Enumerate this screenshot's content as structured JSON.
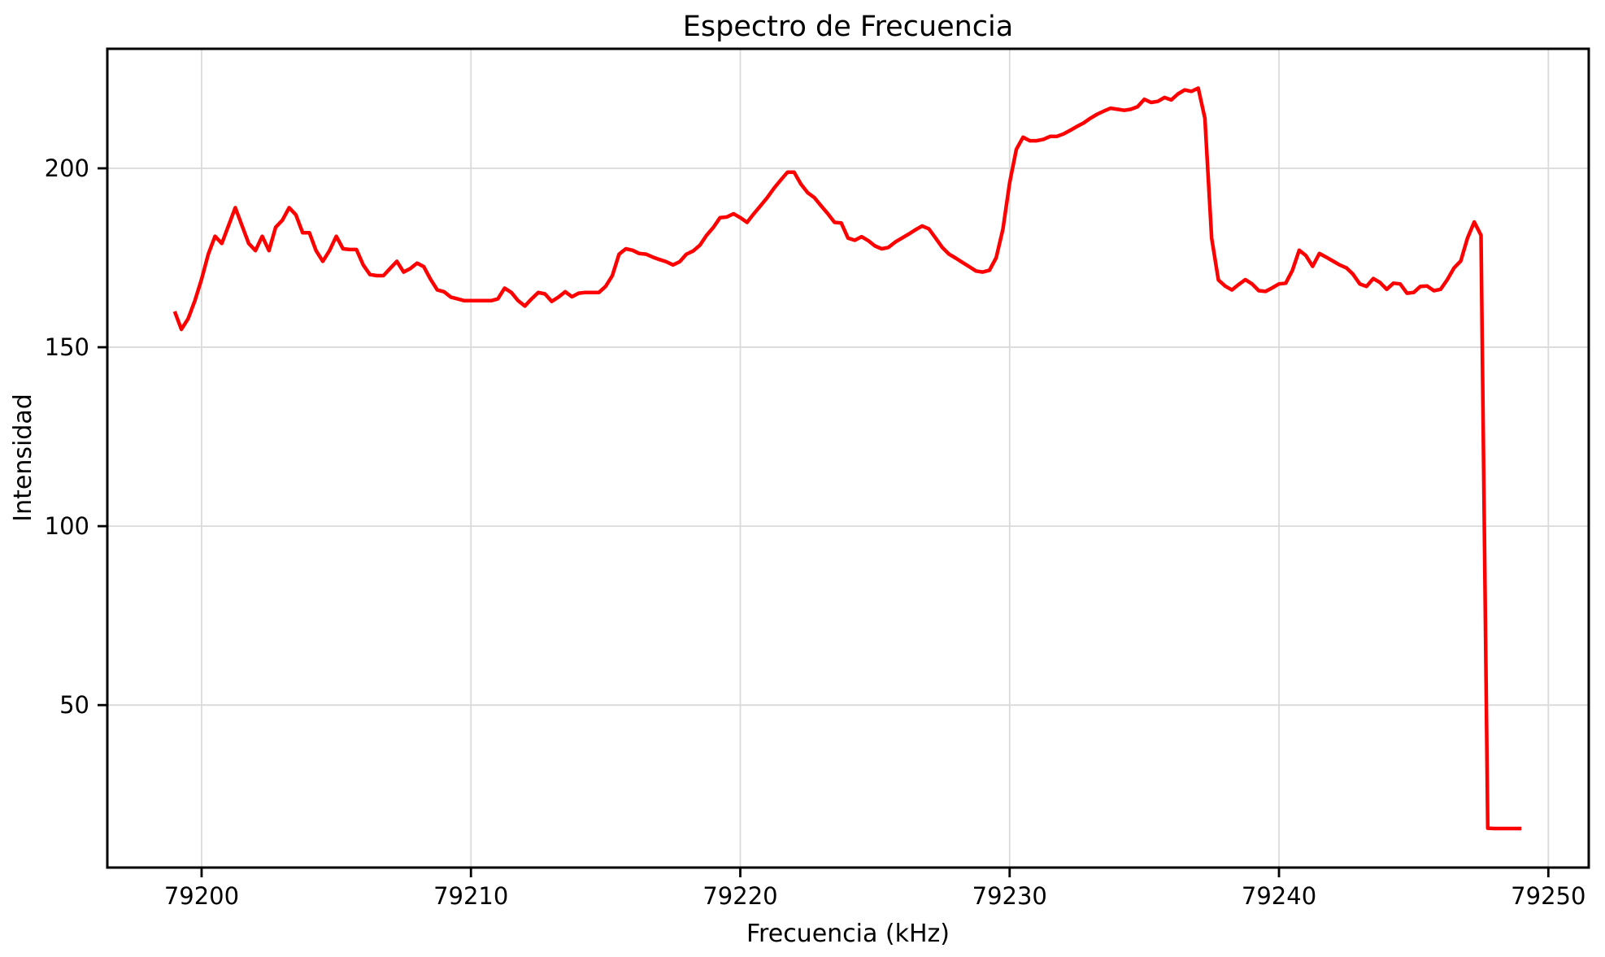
{
  "figure": {
    "title": "Espectro de Frecuencia",
    "xlabel": "Frecuencia (kHz)",
    "ylabel": "Intensidad"
  },
  "chart_data": {
    "type": "line",
    "title": "Espectro de Frecuencia",
    "xlabel": "Frecuencia (kHz)",
    "ylabel": "Intensidad",
    "legend": "none",
    "grid": true,
    "grid_color": "#dadada",
    "background": "#ffffff",
    "line_color": "#ff0000",
    "line_width": 4.5,
    "spine_color": "#000000",
    "text_color": "#000000",
    "xlim": [
      79196.5,
      79251.5
    ],
    "ylim": [
      4.6,
      233.4
    ],
    "xticks": [
      79200,
      79210,
      79220,
      79230,
      79240,
      79250
    ],
    "yticks": [
      50,
      100,
      150,
      200
    ],
    "x": [
      79199.0,
      79199.25,
      79199.5,
      79199.75,
      79200.0,
      79200.25,
      79200.5,
      79200.75,
      79201.0,
      79201.25,
      79201.5,
      79201.75,
      79202.0,
      79202.25,
      79202.5,
      79202.75,
      79203.0,
      79203.25,
      79203.5,
      79203.75,
      79204.0,
      79204.25,
      79204.5,
      79204.75,
      79205.0,
      79205.25,
      79205.5,
      79205.75,
      79206.0,
      79206.25,
      79206.5,
      79206.75,
      79207.0,
      79207.25,
      79207.5,
      79207.75,
      79208.0,
      79208.25,
      79208.5,
      79208.75,
      79209.0,
      79209.25,
      79209.5,
      79209.75,
      79210.0,
      79210.25,
      79210.5,
      79210.75,
      79211.0,
      79211.25,
      79211.5,
      79211.75,
      79212.0,
      79212.25,
      79212.5,
      79212.75,
      79213.0,
      79213.25,
      79213.5,
      79213.75,
      79214.0,
      79214.25,
      79214.5,
      79214.75,
      79215.0,
      79215.25,
      79215.5,
      79215.75,
      79216.0,
      79216.25,
      79216.5,
      79216.75,
      79217.0,
      79217.25,
      79217.5,
      79217.75,
      79218.0,
      79218.25,
      79218.5,
      79218.75,
      79219.0,
      79219.25,
      79219.5,
      79219.75,
      79220.0,
      79220.25,
      79220.5,
      79220.75,
      79221.0,
      79221.25,
      79221.5,
      79221.75,
      79222.0,
      79222.25,
      79222.5,
      79222.75,
      79223.0,
      79223.25,
      79223.5,
      79223.75,
      79224.0,
      79224.25,
      79224.5,
      79224.75,
      79225.0,
      79225.25,
      79225.5,
      79225.75,
      79226.0,
      79226.25,
      79226.5,
      79226.75,
      79227.0,
      79227.25,
      79227.5,
      79227.75,
      79228.0,
      79228.25,
      79228.5,
      79228.75,
      79229.0,
      79229.25,
      79229.5,
      79229.75,
      79230.0,
      79230.25,
      79230.5,
      79230.75,
      79231.0,
      79231.25,
      79231.5,
      79231.75,
      79232.0,
      79232.25,
      79232.5,
      79232.75,
      79233.0,
      79233.25,
      79233.5,
      79233.75,
      79234.0,
      79234.25,
      79234.5,
      79234.75,
      79235.0,
      79235.25,
      79235.5,
      79235.75,
      79236.0,
      79236.25,
      79236.5,
      79236.75,
      79237.0,
      79237.25,
      79237.5,
      79237.75,
      79238.0,
      79238.25,
      79238.5,
      79238.75,
      79239.0,
      79239.25,
      79239.5,
      79239.75,
      79240.0,
      79240.25,
      79240.5,
      79240.75,
      79241.0,
      79241.25,
      79241.5,
      79241.75,
      79242.0,
      79242.25,
      79242.5,
      79242.75,
      79243.0,
      79243.25,
      79243.5,
      79243.75,
      79244.0,
      79244.25,
      79244.5,
      79244.75,
      79245.0,
      79245.25,
      79245.5,
      79245.75,
      79246.0,
      79246.25,
      79246.5,
      79246.75,
      79247.0,
      79247.25,
      79247.5,
      79247.75,
      79248.0,
      79248.25,
      79248.5,
      79248.75,
      79249.0
    ],
    "y": [
      160,
      155,
      158,
      163,
      169,
      176,
      181,
      179,
      184,
      189,
      184,
      179,
      177,
      181,
      177,
      183.5,
      185.5,
      189,
      187,
      182,
      182,
      177,
      174,
      177,
      181,
      177.5,
      177.3,
      177.3,
      173,
      170.3,
      170,
      170,
      172,
      174,
      171,
      172,
      173.5,
      172.5,
      169,
      166,
      165.5,
      164,
      163.5,
      163,
      163,
      163,
      163,
      163,
      163.5,
      166.5,
      165.3,
      163,
      161.5,
      163.5,
      165.3,
      164.9,
      162.8,
      164,
      165.5,
      164.1,
      165.1,
      165.3,
      165.3,
      165.3,
      167,
      170,
      176,
      177.5,
      177.1,
      176.2,
      176,
      175.2,
      174.5,
      173.9,
      173,
      173.9,
      176,
      176.9,
      178.5,
      181.3,
      183.5,
      186.2,
      186.4,
      187.3,
      186.2,
      184.9,
      187.3,
      189.5,
      191.8,
      194.4,
      196.7,
      198.9,
      198.9,
      195.6,
      193.2,
      191.8,
      189.5,
      187.3,
      184.9,
      184.7,
      180.5,
      179.9,
      180.9,
      179.8,
      178.3,
      177.5,
      177.9,
      179.4,
      180.5,
      181.6,
      182.8,
      183.9,
      183.1,
      180.5,
      177.9,
      176,
      174.9,
      173.7,
      172.5,
      171.3,
      171,
      171.5,
      175,
      183,
      196,
      205.3,
      208.7,
      207.7,
      207.7,
      208.1,
      208.9,
      208.9,
      209.6,
      210.6,
      211.7,
      212.7,
      214,
      215.1,
      216,
      216.8,
      216.5,
      216.2,
      216.5,
      217.2,
      219.3,
      218.4,
      218.7,
      219.8,
      219.1,
      220.8,
      221.9,
      221.5,
      222.4,
      214,
      180.5,
      168.8,
      167.1,
      166,
      167.5,
      168.9,
      167.7,
      165.8,
      165.6,
      166.6,
      167.7,
      167.9,
      171.5,
      177.1,
      175.6,
      172.6,
      176.2,
      175.2,
      174.1,
      173,
      172.2,
      170.4,
      167.7,
      167,
      169.2,
      168.1,
      166.2,
      167.9,
      167.7,
      165.1,
      165.3,
      167,
      167.1,
      165.8,
      166.2,
      168.9,
      172.2,
      174.1,
      180.5,
      185,
      181.3,
      15.6,
      15.5,
      15.5,
      15.5,
      15.5,
      15.5
    ]
  }
}
